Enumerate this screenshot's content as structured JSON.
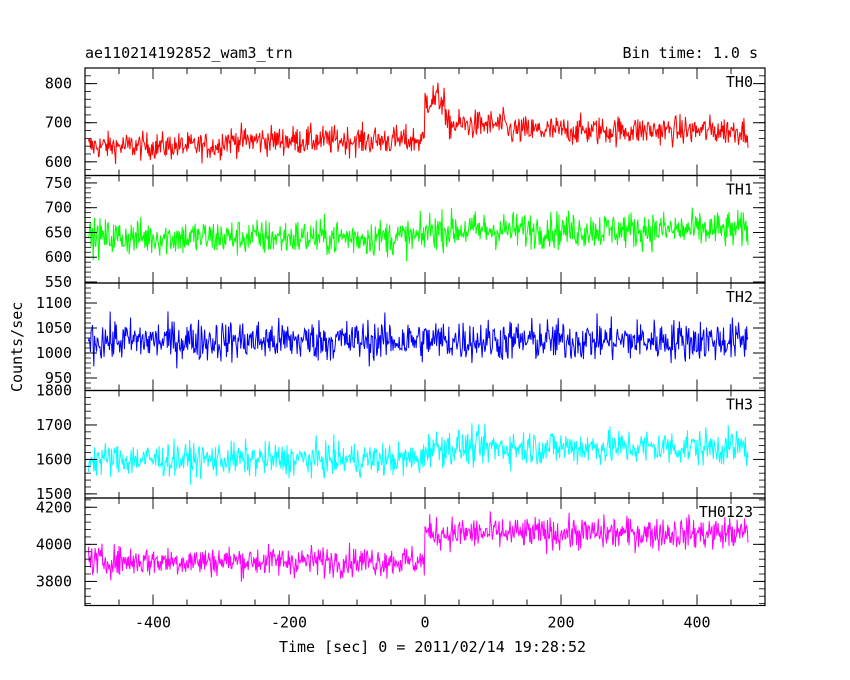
{
  "header": {
    "title": "ae110214192852_wam3_trn",
    "bin_time": "Bin time: 1.0 s"
  },
  "chart_data": {
    "type": "line",
    "title": "ae110214192852_wam3_trn",
    "subtitle": "Bin time: 1.0 s",
    "xlabel": "Time [sec] 0 = 2011/02/14 19:28:52",
    "ylabel": "Counts/sec",
    "xlim": [
      -500,
      500
    ],
    "x_ticks": [
      -400,
      -200,
      0,
      200,
      400
    ],
    "panels": [
      {
        "name": "TH0",
        "color": "#ff0000",
        "ylim": [
          565,
          840
        ],
        "y_ticks": [
          600,
          700,
          800
        ],
        "x_start": -495,
        "x_end": 475,
        "segments": [
          {
            "from": -495,
            "to": -300,
            "mean": 640,
            "noise": 32
          },
          {
            "from": -300,
            "to": 0,
            "mean": 655,
            "noise": 34
          },
          {
            "from": 0,
            "to": 30,
            "mean": 760,
            "noise": 40
          },
          {
            "from": 30,
            "to": 120,
            "mean": 695,
            "noise": 34
          },
          {
            "from": 120,
            "to": 475,
            "mean": 680,
            "noise": 34
          }
        ]
      },
      {
        "name": "TH1",
        "color": "#00ff00",
        "ylim": [
          548,
          765
        ],
        "y_ticks": [
          550,
          600,
          650,
          700,
          750
        ],
        "x_start": -495,
        "x_end": 475,
        "segments": [
          {
            "from": -495,
            "to": 0,
            "mean": 640,
            "noise": 34
          },
          {
            "from": 0,
            "to": 475,
            "mean": 655,
            "noise": 34
          }
        ]
      },
      {
        "name": "TH2",
        "color": "#0000ff",
        "ylim": [
          925,
          1140
        ],
        "y_ticks": [
          950,
          1000,
          1050,
          1100
        ],
        "x_start": -495,
        "x_end": 475,
        "segments": [
          {
            "from": -495,
            "to": 475,
            "mean": 1025,
            "noise": 38
          }
        ]
      },
      {
        "name": "TH3",
        "color": "#00ffff",
        "ylim": [
          1488,
          1800
        ],
        "y_ticks": [
          1500,
          1600,
          1700,
          1800
        ],
        "x_start": -495,
        "x_end": 475,
        "segments": [
          {
            "from": -495,
            "to": 0,
            "mean": 1600,
            "noise": 45
          },
          {
            "from": 0,
            "to": 475,
            "mean": 1635,
            "noise": 48
          }
        ]
      },
      {
        "name": "TH0123",
        "color": "#ff00ff",
        "ylim": [
          3670,
          4250
        ],
        "y_ticks": [
          3800,
          4000,
          4200
        ],
        "x_start": -495,
        "x_end": 475,
        "segments": [
          {
            "from": -495,
            "to": 0,
            "mean": 3910,
            "noise": 75
          },
          {
            "from": 0,
            "to": 475,
            "mean": 4060,
            "noise": 80
          }
        ]
      }
    ]
  }
}
